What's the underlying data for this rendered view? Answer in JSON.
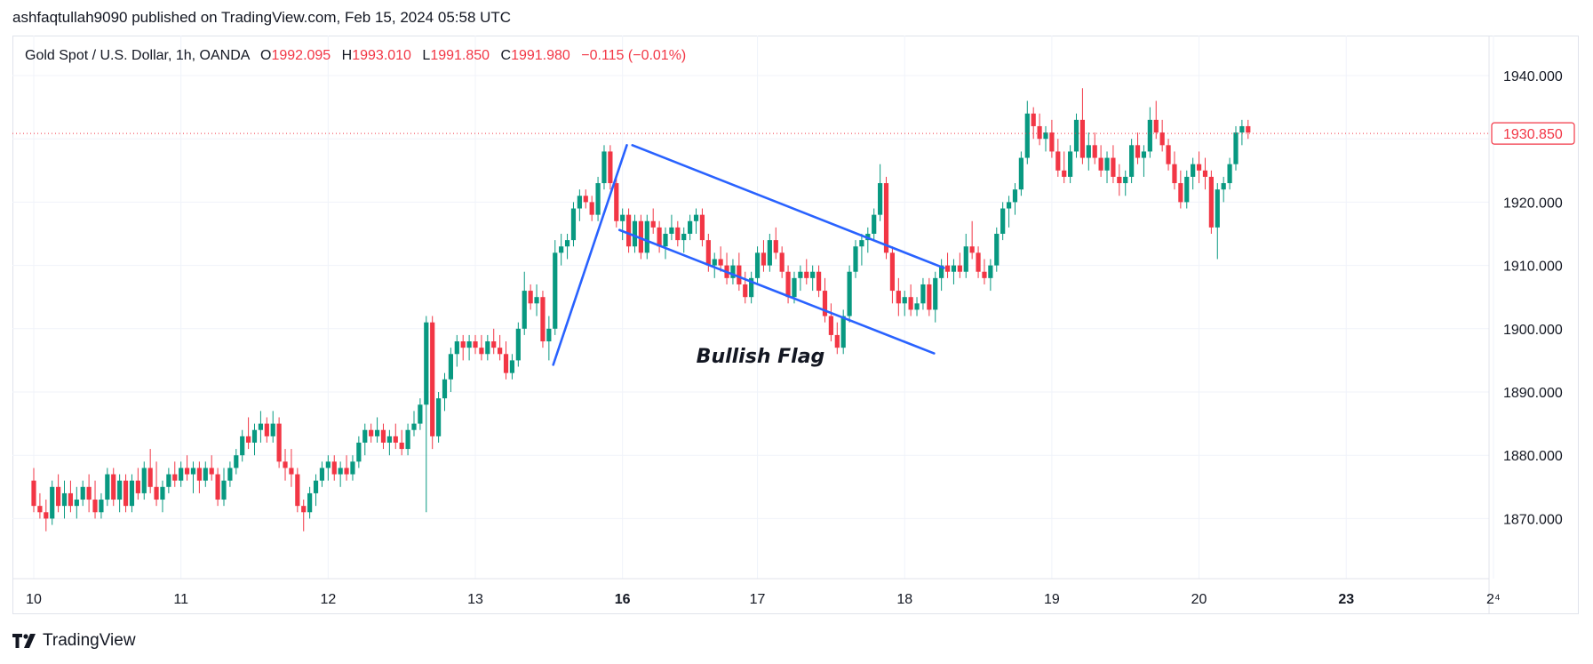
{
  "header": {
    "published_line": "ashfaqtullah9090 published on TradingView.com, Feb 15, 2024 05:58 UTC"
  },
  "legend": {
    "symbol": "Gold Spot / U.S. Dollar, 1h, OANDA",
    "open_label": "O",
    "open": "1992.095",
    "high_label": "H",
    "high": "1993.010",
    "low_label": "L",
    "low": "1991.850",
    "close_label": "C",
    "close": "1991.980",
    "change": "−0.115 (−0.01%)"
  },
  "footer": {
    "brand": "TradingView"
  },
  "colors": {
    "up": "#089981",
    "down": "#f23645",
    "drawing": "#2962ff",
    "grid": "#f0f3fa",
    "axis_text": "#131722"
  },
  "chart_data": {
    "type": "candlestick",
    "ylim": [
      1862,
      1943
    ],
    "y_ticks": [
      1940,
      1930,
      1920,
      1910,
      1900,
      1890,
      1880,
      1870
    ],
    "y_tick_labels": [
      "1940.000",
      "1920.000",
      "1910.000",
      "1900.000",
      "1890.000",
      "1880.000",
      "1870.000"
    ],
    "x_ticks": [
      {
        "label": "10",
        "bold": false,
        "x": 0.0
      },
      {
        "label": "11",
        "bold": false,
        "x": 24.0
      },
      {
        "label": "12",
        "bold": false,
        "x": 48.0
      },
      {
        "label": "13",
        "bold": false,
        "x": 72.0
      },
      {
        "label": "16",
        "bold": true,
        "x": 96.0
      },
      {
        "label": "17",
        "bold": false,
        "x": 118.0
      },
      {
        "label": "18",
        "bold": false,
        "x": 142.0
      },
      {
        "label": "19",
        "bold": false,
        "x": 166.0
      },
      {
        "label": "20",
        "bold": false,
        "x": 190.0
      },
      {
        "label": "23",
        "bold": true,
        "x": 214.0
      },
      {
        "label": "2⁴",
        "bold": false,
        "x": 238.0
      }
    ],
    "last_price": {
      "value": 1930.85,
      "label": "1930.850"
    },
    "annotation": {
      "text": "Bullish Flag",
      "x": 118.5,
      "y": 1894.6
    },
    "trendlines": [
      {
        "x1": 84.7,
        "y1": 1894.3,
        "x2": 96.7,
        "y2": 1929.0
      },
      {
        "x1": 97.6,
        "y1": 1929.0,
        "x2": 148.4,
        "y2": 1909.6
      },
      {
        "x1": 95.5,
        "y1": 1915.6,
        "x2": 146.8,
        "y2": 1896.1
      }
    ],
    "candles": [
      [
        1876,
        1878,
        1871,
        1872
      ],
      [
        1872,
        1874,
        1870,
        1871
      ],
      [
        1871,
        1873,
        1868,
        1870
      ],
      [
        1870,
        1876,
        1869,
        1875
      ],
      [
        1875,
        1877,
        1871,
        1872
      ],
      [
        1872,
        1876,
        1870,
        1874
      ],
      [
        1874,
        1876,
        1871,
        1872
      ],
      [
        1872,
        1875,
        1870,
        1873
      ],
      [
        1873,
        1876,
        1872,
        1875
      ],
      [
        1875,
        1877,
        1871,
        1873
      ],
      [
        1873,
        1876,
        1870,
        1871
      ],
      [
        1871,
        1874,
        1870,
        1873
      ],
      [
        1873,
        1878,
        1872,
        1877
      ],
      [
        1877,
        1878,
        1872,
        1873
      ],
      [
        1873,
        1877,
        1871,
        1876
      ],
      [
        1876,
        1877,
        1871,
        1872
      ],
      [
        1872,
        1877,
        1871,
        1876
      ],
      [
        1876,
        1878,
        1873,
        1874
      ],
      [
        1874,
        1879,
        1873,
        1878
      ],
      [
        1878,
        1881,
        1874,
        1875
      ],
      [
        1875,
        1879,
        1872,
        1873
      ],
      [
        1873,
        1876,
        1871,
        1875
      ],
      [
        1875,
        1878,
        1874,
        1877
      ],
      [
        1877,
        1879,
        1875,
        1876
      ],
      [
        1876,
        1879,
        1875,
        1878
      ],
      [
        1878,
        1880,
        1876,
        1877
      ],
      [
        1877,
        1879,
        1874,
        1878
      ],
      [
        1878,
        1879,
        1874,
        1876
      ],
      [
        1876,
        1879,
        1875,
        1878
      ],
      [
        1878,
        1880,
        1876,
        1877
      ],
      [
        1877,
        1878,
        1872,
        1873
      ],
      [
        1873,
        1878,
        1872,
        1876
      ],
      [
        1876,
        1879,
        1875,
        1878
      ],
      [
        1878,
        1881,
        1877,
        1880
      ],
      [
        1880,
        1884,
        1879,
        1883
      ],
      [
        1883,
        1886,
        1881,
        1882
      ],
      [
        1882,
        1885,
        1880,
        1884
      ],
      [
        1884,
        1887,
        1882,
        1885
      ],
      [
        1885,
        1886,
        1882,
        1883
      ],
      [
        1883,
        1887,
        1882,
        1885
      ],
      [
        1885,
        1886,
        1878,
        1879
      ],
      [
        1879,
        1881,
        1876,
        1878
      ],
      [
        1878,
        1881,
        1875,
        1877
      ],
      [
        1877,
        1878,
        1871,
        1872
      ],
      [
        1872,
        1873,
        1868,
        1871
      ],
      [
        1871,
        1875,
        1870,
        1874
      ],
      [
        1874,
        1877,
        1872,
        1876
      ],
      [
        1876,
        1879,
        1875,
        1878
      ],
      [
        1878,
        1880,
        1876,
        1879
      ],
      [
        1879,
        1880,
        1876,
        1877
      ],
      [
        1877,
        1879,
        1875,
        1878
      ],
      [
        1878,
        1880,
        1876,
        1877
      ],
      [
        1877,
        1880,
        1876,
        1879
      ],
      [
        1879,
        1883,
        1878,
        1882
      ],
      [
        1882,
        1885,
        1880,
        1884
      ],
      [
        1884,
        1885,
        1882,
        1883
      ],
      [
        1883,
        1886,
        1882,
        1884
      ],
      [
        1884,
        1885,
        1881,
        1882
      ],
      [
        1882,
        1884,
        1880,
        1883
      ],
      [
        1883,
        1885,
        1881,
        1882
      ],
      [
        1882,
        1884,
        1880,
        1881
      ],
      [
        1881,
        1885,
        1880,
        1884
      ],
      [
        1884,
        1887,
        1883,
        1885
      ],
      [
        1885,
        1889,
        1884,
        1888
      ],
      [
        1888,
        1902,
        1871,
        1901
      ],
      [
        1901,
        1902,
        1881,
        1883
      ],
      [
        1883,
        1890,
        1882,
        1889
      ],
      [
        1889,
        1893,
        1887,
        1892
      ],
      [
        1892,
        1897,
        1890,
        1896
      ],
      [
        1896,
        1899,
        1894,
        1898
      ],
      [
        1898,
        1899,
        1895,
        1897
      ],
      [
        1897,
        1899,
        1895,
        1898
      ],
      [
        1898,
        1899,
        1896,
        1897
      ],
      [
        1897,
        1899,
        1895,
        1896
      ],
      [
        1896,
        1899,
        1895,
        1898
      ],
      [
        1898,
        1900,
        1896,
        1897
      ],
      [
        1897,
        1899,
        1895,
        1896
      ],
      [
        1896,
        1898,
        1892,
        1893
      ],
      [
        1893,
        1896,
        1892,
        1895
      ],
      [
        1895,
        1901,
        1894,
        1900
      ],
      [
        1900,
        1909,
        1899,
        1906
      ],
      [
        1906,
        1907,
        1903,
        1904
      ],
      [
        1904,
        1907,
        1902,
        1905
      ],
      [
        1905,
        1906,
        1897,
        1898
      ],
      [
        1898,
        1902,
        1895,
        1900
      ],
      [
        1900,
        1914,
        1899,
        1912
      ],
      [
        1912,
        1915,
        1910,
        1913
      ],
      [
        1913,
        1915,
        1911,
        1914
      ],
      [
        1914,
        1920,
        1913,
        1919
      ],
      [
        1919,
        1922,
        1917,
        1921
      ],
      [
        1921,
        1922,
        1919,
        1920
      ],
      [
        1920,
        1921,
        1917,
        1918
      ],
      [
        1918,
        1924,
        1917,
        1923
      ],
      [
        1923,
        1929,
        1922,
        1928
      ],
      [
        1928,
        1929,
        1922,
        1923
      ],
      [
        1923,
        1924,
        1916,
        1917
      ],
      [
        1917,
        1919,
        1914,
        1918
      ],
      [
        1918,
        1919,
        1912,
        1913
      ],
      [
        1913,
        1918,
        1912,
        1917
      ],
      [
        1917,
        1918,
        1911,
        1912
      ],
      [
        1912,
        1918,
        1911,
        1917
      ],
      [
        1917,
        1919,
        1915,
        1916
      ],
      [
        1916,
        1917,
        1912,
        1913
      ],
      [
        1913,
        1916,
        1911,
        1915
      ],
      [
        1915,
        1918,
        1914,
        1916
      ],
      [
        1916,
        1917,
        1913,
        1914
      ],
      [
        1914,
        1916,
        1912,
        1915
      ],
      [
        1915,
        1918,
        1914,
        1917
      ],
      [
        1917,
        1919,
        1915,
        1918
      ],
      [
        1918,
        1919,
        1913,
        1914
      ],
      [
        1914,
        1915,
        1909,
        1910
      ],
      [
        1910,
        1912,
        1908,
        1911
      ],
      [
        1911,
        1913,
        1909,
        1910
      ],
      [
        1910,
        1912,
        1907,
        1908
      ],
      [
        1908,
        1911,
        1907,
        1910
      ],
      [
        1910,
        1912,
        1906,
        1907
      ],
      [
        1907,
        1909,
        1904,
        1905
      ],
      [
        1905,
        1909,
        1904,
        1908
      ],
      [
        1908,
        1913,
        1907,
        1912
      ],
      [
        1912,
        1914,
        1909,
        1910
      ],
      [
        1910,
        1915,
        1909,
        1914
      ],
      [
        1914,
        1916,
        1911,
        1912
      ],
      [
        1912,
        1913,
        1908,
        1909
      ],
      [
        1909,
        1910,
        1904,
        1905
      ],
      [
        1905,
        1909,
        1904,
        1908
      ],
      [
        1908,
        1910,
        1906,
        1909
      ],
      [
        1909,
        1911,
        1907,
        1908
      ],
      [
        1908,
        1910,
        1906,
        1909
      ],
      [
        1909,
        1910,
        1905,
        1906
      ],
      [
        1906,
        1908,
        1901,
        1902
      ],
      [
        1902,
        1904,
        1898,
        1899
      ],
      [
        1899,
        1901,
        1896,
        1897
      ],
      [
        1897,
        1903,
        1896,
        1902
      ],
      [
        1902,
        1910,
        1901,
        1909
      ],
      [
        1909,
        1914,
        1908,
        1913
      ],
      [
        1913,
        1915,
        1910,
        1914
      ],
      [
        1914,
        1916,
        1912,
        1915
      ],
      [
        1915,
        1919,
        1914,
        1918
      ],
      [
        1918,
        1926,
        1917,
        1923
      ],
      [
        1923,
        1924,
        1911,
        1912
      ],
      [
        1912,
        1913,
        1904,
        1906
      ],
      [
        1906,
        1908,
        1902,
        1904
      ],
      [
        1904,
        1906,
        1902,
        1905
      ],
      [
        1905,
        1907,
        1902,
        1903
      ],
      [
        1903,
        1905,
        1902,
        1904
      ],
      [
        1904,
        1908,
        1903,
        1907
      ],
      [
        1907,
        1908,
        1902,
        1903
      ],
      [
        1903,
        1909,
        1901,
        1908
      ],
      [
        1908,
        1911,
        1906,
        1910
      ],
      [
        1910,
        1912,
        1908,
        1909
      ],
      [
        1909,
        1911,
        1907,
        1910
      ],
      [
        1910,
        1912,
        1908,
        1909
      ],
      [
        1909,
        1915,
        1908,
        1913
      ],
      [
        1913,
        1917,
        1911,
        1912
      ],
      [
        1912,
        1913,
        1908,
        1909
      ],
      [
        1909,
        1911,
        1907,
        1908
      ],
      [
        1908,
        1911,
        1906,
        1910
      ],
      [
        1910,
        1916,
        1909,
        1915
      ],
      [
        1915,
        1920,
        1914,
        1919
      ],
      [
        1919,
        1921,
        1916,
        1920
      ],
      [
        1920,
        1923,
        1918,
        1922
      ],
      [
        1922,
        1928,
        1921,
        1927
      ],
      [
        1927,
        1936,
        1926,
        1934
      ],
      [
        1934,
        1935,
        1930,
        1932
      ],
      [
        1932,
        1934,
        1929,
        1930
      ],
      [
        1930,
        1932,
        1928,
        1931
      ],
      [
        1931,
        1933,
        1927,
        1928
      ],
      [
        1928,
        1930,
        1924,
        1925
      ],
      [
        1925,
        1928,
        1923,
        1924
      ],
      [
        1924,
        1929,
        1923,
        1928
      ],
      [
        1928,
        1934,
        1927,
        1933
      ],
      [
        1933,
        1938,
        1926,
        1927
      ],
      [
        1927,
        1931,
        1925,
        1929
      ],
      [
        1929,
        1931,
        1926,
        1927
      ],
      [
        1927,
        1929,
        1924,
        1925
      ],
      [
        1925,
        1928,
        1923,
        1927
      ],
      [
        1927,
        1929,
        1923,
        1924
      ],
      [
        1924,
        1926,
        1921,
        1923
      ],
      [
        1923,
        1925,
        1921,
        1924
      ],
      [
        1924,
        1930,
        1923,
        1929
      ],
      [
        1929,
        1931,
        1926,
        1927
      ],
      [
        1927,
        1929,
        1924,
        1928
      ],
      [
        1928,
        1935,
        1927,
        1933
      ],
      [
        1933,
        1936,
        1930,
        1931
      ],
      [
        1931,
        1933,
        1928,
        1929
      ],
      [
        1929,
        1930,
        1925,
        1926
      ],
      [
        1926,
        1928,
        1922,
        1923
      ],
      [
        1923,
        1925,
        1919,
        1920
      ],
      [
        1920,
        1925,
        1919,
        1924
      ],
      [
        1924,
        1927,
        1922,
        1926
      ],
      [
        1926,
        1928,
        1923,
        1925
      ],
      [
        1925,
        1927,
        1922,
        1924
      ],
      [
        1924,
        1925,
        1915,
        1916
      ],
      [
        1916,
        1923,
        1911,
        1922
      ],
      [
        1922,
        1924,
        1920,
        1923
      ],
      [
        1923,
        1927,
        1922,
        1926
      ],
      [
        1926,
        1932,
        1925,
        1931
      ],
      [
        1931,
        1933,
        1929,
        1932
      ],
      [
        1932,
        1933,
        1930,
        1931
      ]
    ]
  }
}
